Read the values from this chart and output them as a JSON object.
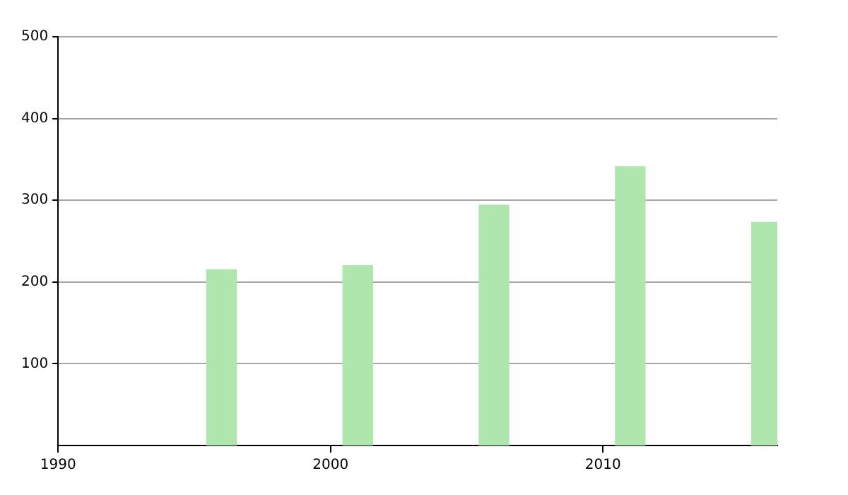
{
  "chart_data": {
    "type": "bar",
    "x": [
      1996,
      2001,
      2006,
      2011,
      2016
    ],
    "values": [
      215,
      220,
      294,
      341,
      273
    ],
    "color": "#aee6ae",
    "xlim": [
      1990,
      2016.4
    ],
    "xticks": [
      1990,
      2000,
      2010
    ],
    "ylim": [
      0,
      500
    ],
    "yticks": [
      100,
      200,
      300,
      400,
      500
    ],
    "grid": "y",
    "legend": false
  }
}
